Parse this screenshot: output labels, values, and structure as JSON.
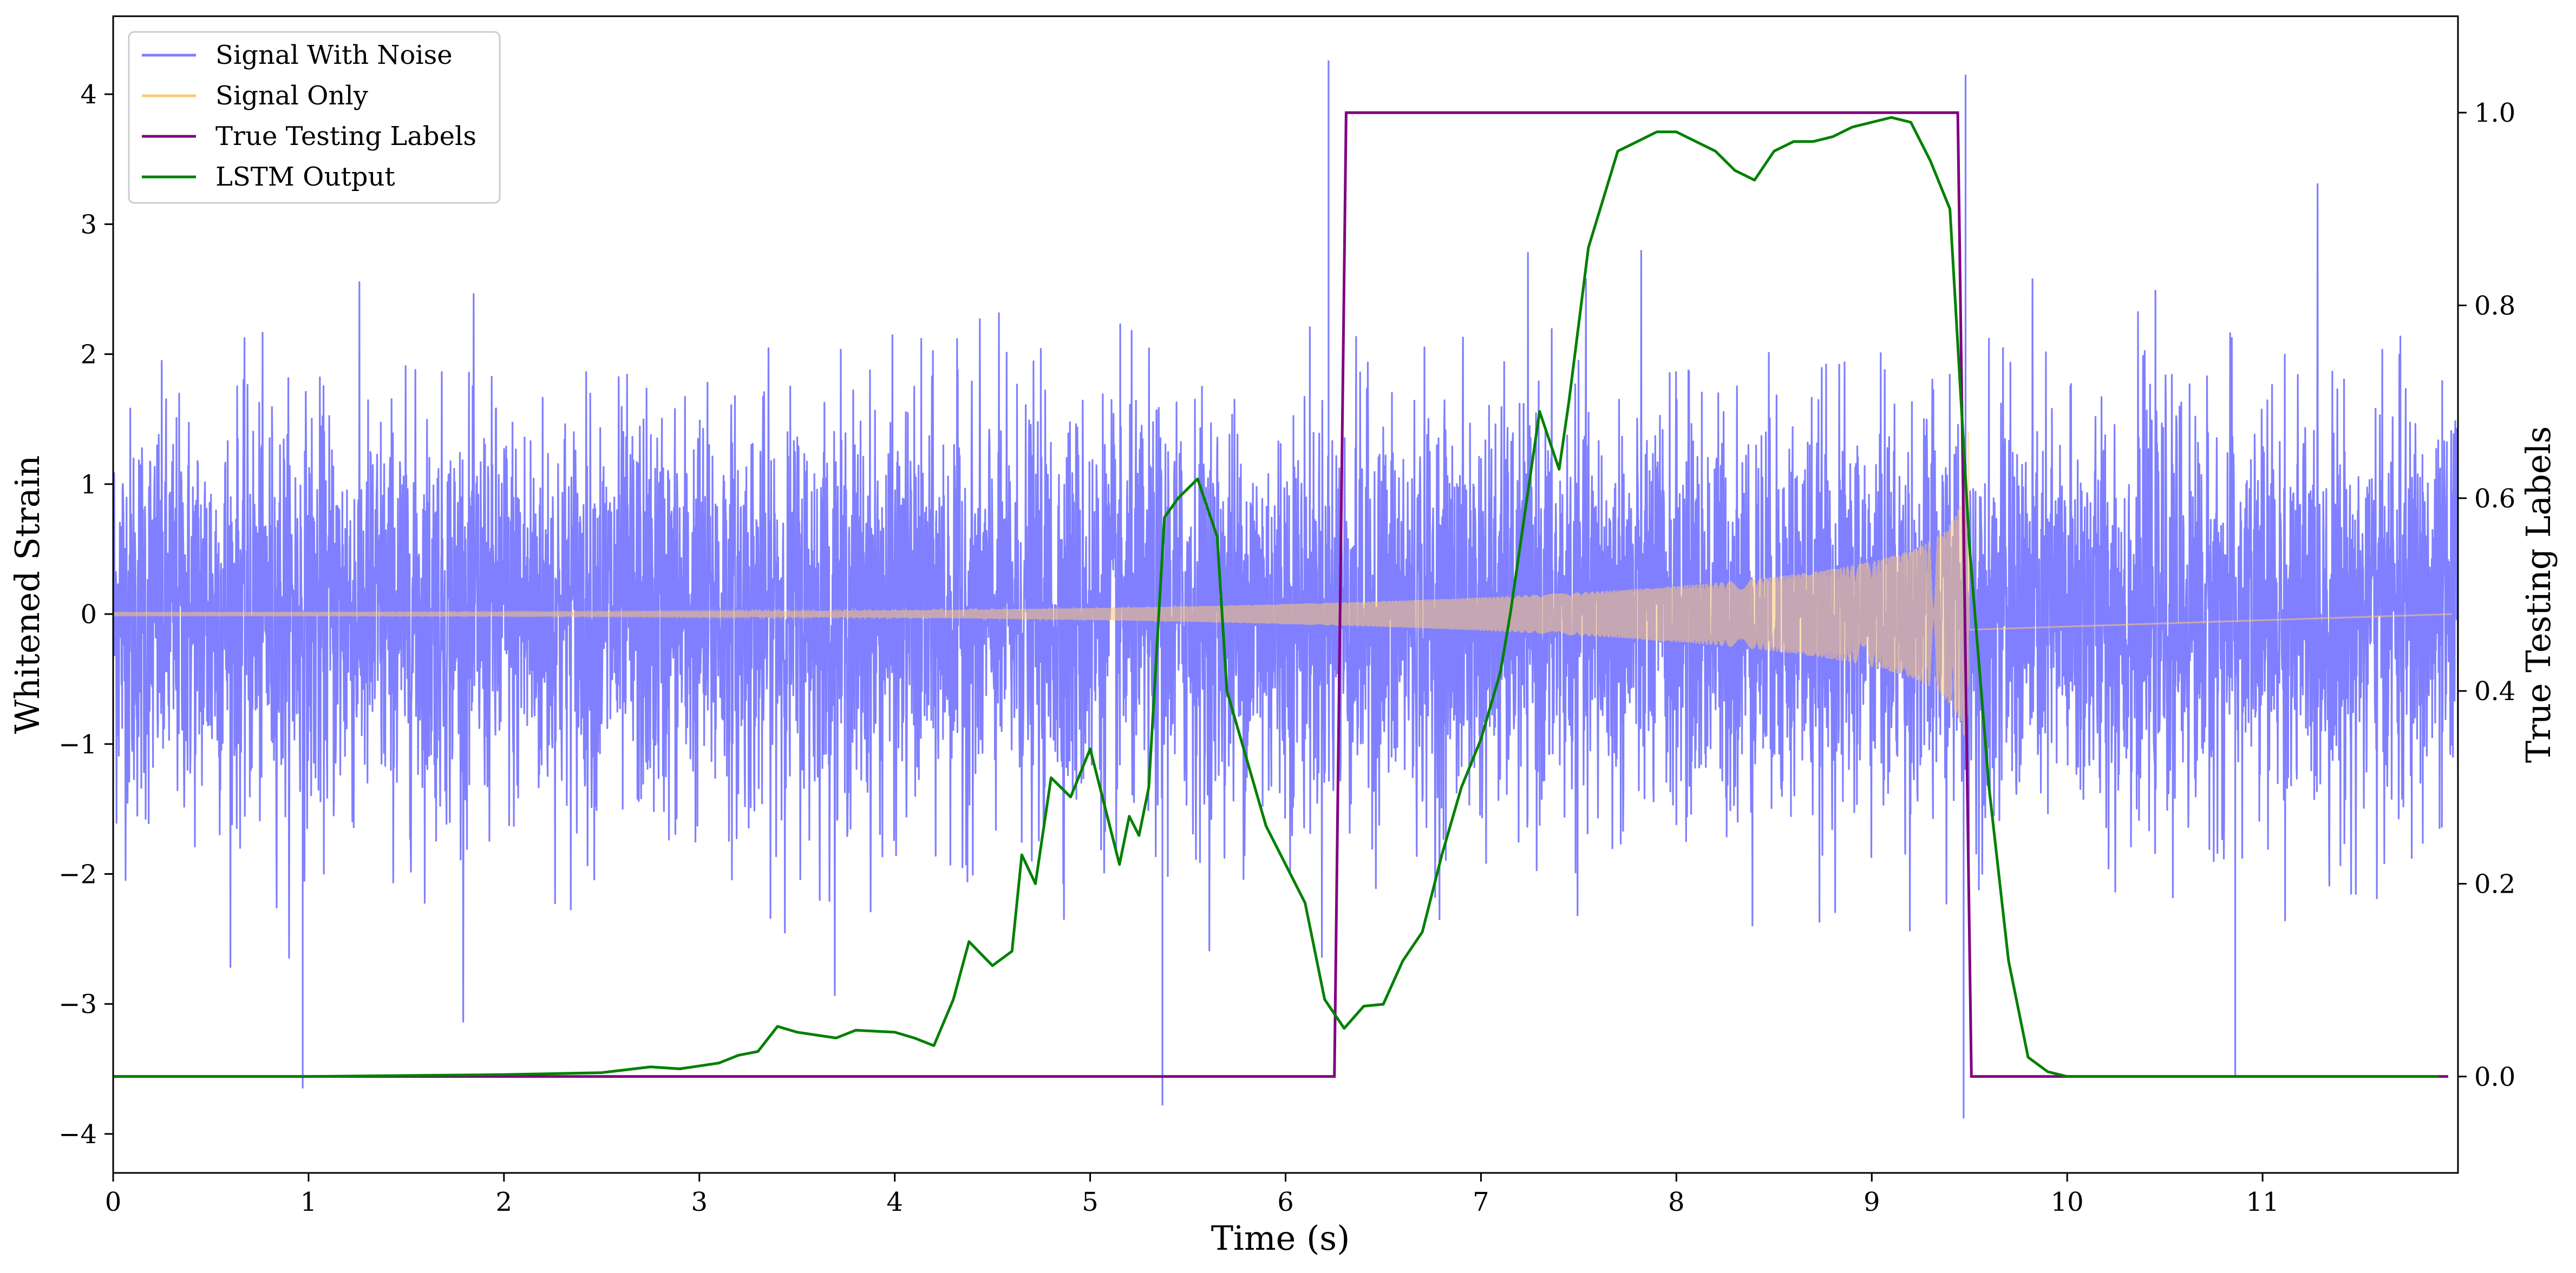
{
  "chart_data": {
    "type": "line",
    "title": "",
    "xlabel": "Time (s)",
    "ylabel_left": "Whitened Strain",
    "ylabel_right": "True Testing Labels",
    "xlim": [
      0,
      12
    ],
    "ylim_left": [
      -4.3,
      4.6
    ],
    "ylim_right": [
      -0.1,
      1.1
    ],
    "x_ticks": [
      "0",
      "1",
      "2",
      "3",
      "4",
      "5",
      "6",
      "7",
      "8",
      "9",
      "10",
      "11"
    ],
    "y_ticks_left": [
      "−4",
      "−3",
      "−2",
      "−1",
      "0",
      "1",
      "2",
      "3",
      "4"
    ],
    "y_ticks_right": [
      "0.0",
      "0.2",
      "0.4",
      "0.6",
      "0.8",
      "1.0"
    ],
    "grid": false,
    "legend_position": "top-left",
    "series": [
      {
        "name": "Signal With Noise",
        "axis": "left",
        "color": "#7f7fff",
        "description_values": "dense noise, roughly ±1.5 typical amplitude with peaks to ±4",
        "amplitude_typical": 1.5,
        "peaks": [
          {
            "x": 0.97,
            "y": -3.65
          },
          {
            "x": 5.37,
            "y": -3.78
          },
          {
            "x": 6.22,
            "y": 4.26
          },
          {
            "x": 9.47,
            "y": -3.88
          },
          {
            "x": 9.48,
            "y": 4.15
          },
          {
            "x": 10.86,
            "y": -3.55
          }
        ]
      },
      {
        "name": "Signal Only",
        "axis": "left",
        "color": "#ffc875",
        "chirp_start": 0.0,
        "chirp_end": 9.5,
        "amplitude_start": 0.05,
        "amplitude_end": 1.15
      },
      {
        "name": "True Testing Labels",
        "axis": "right",
        "color": "#800080",
        "x": [
          0,
          6.25,
          6.31,
          9.44,
          9.51,
          11.95
        ],
        "y": [
          0,
          0,
          1,
          1,
          0,
          0
        ]
      },
      {
        "name": "LSTM Output",
        "axis": "right",
        "color": "#008000",
        "x": [
          0,
          1.0,
          2.0,
          2.5,
          2.75,
          2.9,
          3.1,
          3.2,
          3.3,
          3.4,
          3.5,
          3.7,
          3.8,
          4.0,
          4.1,
          4.2,
          4.3,
          4.38,
          4.5,
          4.6,
          4.65,
          4.72,
          4.8,
          4.9,
          5.0,
          5.1,
          5.15,
          5.2,
          5.25,
          5.3,
          5.38,
          5.45,
          5.55,
          5.65,
          5.7,
          5.8,
          5.9,
          6.1,
          6.2,
          6.3,
          6.4,
          6.5,
          6.6,
          6.7,
          6.8,
          6.9,
          7.0,
          7.1,
          7.15,
          7.3,
          7.4,
          7.45,
          7.55,
          7.7,
          7.8,
          7.9,
          8.0,
          8.1,
          8.2,
          8.3,
          8.4,
          8.5,
          8.6,
          8.7,
          8.8,
          8.9,
          9.0,
          9.1,
          9.2,
          9.3,
          9.4,
          9.5,
          9.6,
          9.7,
          9.8,
          9.9,
          10.0,
          10.5,
          11.0,
          11.9
        ],
        "y": [
          0.0,
          0.0,
          0.002,
          0.004,
          0.01,
          0.008,
          0.014,
          0.022,
          0.026,
          0.052,
          0.046,
          0.04,
          0.048,
          0.046,
          0.04,
          0.032,
          0.08,
          0.14,
          0.115,
          0.13,
          0.23,
          0.2,
          0.31,
          0.29,
          0.34,
          0.26,
          0.22,
          0.27,
          0.25,
          0.3,
          0.58,
          0.6,
          0.62,
          0.56,
          0.4,
          0.33,
          0.26,
          0.18,
          0.08,
          0.05,
          0.073,
          0.075,
          0.12,
          0.15,
          0.23,
          0.3,
          0.35,
          0.42,
          0.48,
          0.69,
          0.63,
          0.7,
          0.86,
          0.96,
          0.97,
          0.98,
          0.98,
          0.97,
          0.96,
          0.94,
          0.93,
          0.96,
          0.97,
          0.97,
          0.975,
          0.985,
          0.99,
          0.995,
          0.99,
          0.95,
          0.9,
          0.55,
          0.3,
          0.12,
          0.02,
          0.005,
          0.0,
          0.0,
          0.0,
          0.0
        ]
      }
    ]
  }
}
